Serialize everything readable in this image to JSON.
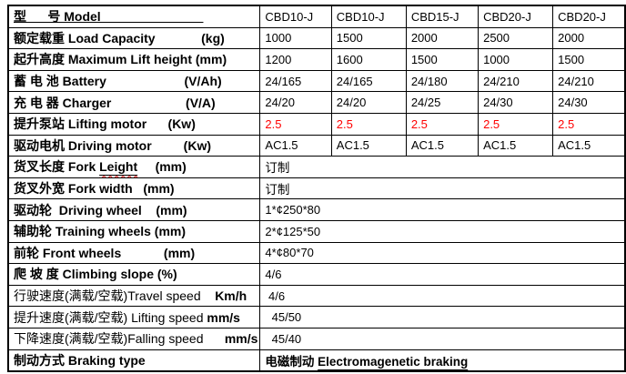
{
  "colors": {
    "text": "#000000",
    "highlight": "#FF0000",
    "border": "#000000",
    "background": "#FFFFFF"
  },
  "table": {
    "title_row_models": [
      "CBD10-J",
      "CBD10-J",
      "CBD15-J",
      "CBD20-J",
      "CBD20-J"
    ],
    "rows": [
      {
        "id": "model",
        "label": [
          {
            "t": "型      号 Model                             ",
            "b": true,
            "u": true
          }
        ],
        "values": [
          "CBD10-J",
          "CBD10-J",
          "CBD15-J",
          "CBD20-J",
          "CBD20-J"
        ],
        "span": false
      },
      {
        "id": "load-capacity",
        "label": [
          {
            "t": "额定载重 Load Capacity             (kg)",
            "b": true
          }
        ],
        "values": [
          "1000",
          "1500",
          "2000",
          "2500",
          "2000"
        ],
        "span": false
      },
      {
        "id": "lift-height",
        "label": [
          {
            "t": "起升高度 Maximum Lift height (mm)",
            "b": true
          }
        ],
        "values": [
          "1200",
          "1600",
          "1500",
          "1000",
          "1500"
        ],
        "span": false
      },
      {
        "id": "battery",
        "label": [
          {
            "t": "蓄 电 池 Battery                      (V/Ah)",
            "b": true
          }
        ],
        "values": [
          "24/165",
          "24/165",
          "24/180",
          "24/210",
          "24/210"
        ],
        "span": false
      },
      {
        "id": "charger",
        "label": [
          {
            "t": "充 电 器 Charger                     (V/A)",
            "b": true
          }
        ],
        "values": [
          "24/20",
          "24/20",
          "24/25",
          "24/30",
          "24/30"
        ],
        "span": false
      },
      {
        "id": "lifting-motor",
        "label": [
          {
            "t": "提升泵站 Lifting motor      (Kw)",
            "b": true
          }
        ],
        "values": [
          "2.5",
          "2.5",
          "2.5",
          "2.5",
          "2.5"
        ],
        "span": false,
        "red": true
      },
      {
        "id": "driving-motor",
        "label": [
          {
            "t": "驱动电机 Driving motor         (Kw)",
            "b": true
          }
        ],
        "values": [
          "AC1.5",
          "AC1.5",
          "AC1.5",
          "AC1.5",
          "AC1.5"
        ],
        "span": false
      },
      {
        "id": "fork-length",
        "label": [
          {
            "t": "货叉长度 Fork ",
            "b": true
          },
          {
            "t": "Leight",
            "b": true,
            "u": true,
            "w": true
          },
          {
            "t": "     (mm)",
            "b": true
          }
        ],
        "values": [
          "订制"
        ],
        "span": true,
        "cjk_value": true
      },
      {
        "id": "fork-width",
        "label": [
          {
            "t": "货叉外宽 Fork width   (mm)",
            "b": true
          }
        ],
        "values": [
          "订制"
        ],
        "span": true,
        "cjk_value": true
      },
      {
        "id": "driving-wheel",
        "label": [
          {
            "t": "驱动轮  Driving wheel    (mm)",
            "b": true
          }
        ],
        "values": [
          "1*¢250*80"
        ],
        "span": true
      },
      {
        "id": "training-wheels",
        "label": [
          {
            "t": "辅助轮 Training wheels (mm)",
            "b": true
          }
        ],
        "values": [
          "2*¢125*50"
        ],
        "span": true
      },
      {
        "id": "front-wheels",
        "label": [
          {
            "t": "前轮 Front wheels            (mm)",
            "b": true
          }
        ],
        "values": [
          "4*¢80*70"
        ],
        "span": true
      },
      {
        "id": "climbing-slope",
        "label": [
          {
            "t": "爬 坡 度 Climbing slope (%)",
            "b": true
          }
        ],
        "values": [
          "4/6"
        ],
        "span": true
      },
      {
        "id": "travel-speed",
        "label": [
          {
            "t": "行驶速度(满载/空载)Travel speed    ",
            "b": false
          },
          {
            "t": "Km/h",
            "b": true
          }
        ],
        "values": [
          " 4/6"
        ],
        "span": true
      },
      {
        "id": "lifting-speed",
        "label": [
          {
            "t": "提升速度(满载/空载) Lifting speed ",
            "b": false
          },
          {
            "t": "mm/s",
            "b": true
          }
        ],
        "values": [
          "  45/50"
        ],
        "span": true
      },
      {
        "id": "falling-speed",
        "label": [
          {
            "t": "下降速度(满载/空载)Falling speed      ",
            "b": false
          },
          {
            "t": "mm/s",
            "b": true
          }
        ],
        "values": [
          "  45/40"
        ],
        "span": true
      },
      {
        "id": "braking-type",
        "label": [
          {
            "t": "制动方式 Braking type",
            "b": true
          }
        ],
        "values": [
          [
            {
              "t": "电磁制动 ",
              "b": true
            },
            {
              "t": "Electromagenetic braking",
              "b": true,
              "u": true,
              "w": true
            }
          ]
        ],
        "span": true,
        "cjk_value": true
      }
    ]
  }
}
